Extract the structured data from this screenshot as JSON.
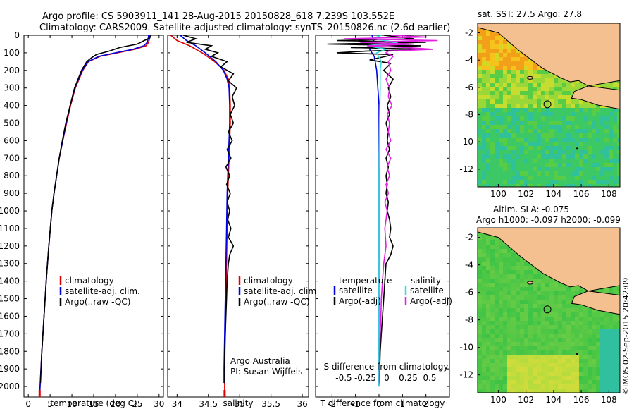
{
  "header": {
    "line1": "Argo profile: CS 5903911_141 28-Aug-2015 20150828_618 7.239S 103.552E",
    "line2": "Climatology: CARS2009. Satellite-adjusted climatology: synTS_20150826.nc (2.6d earlier)"
  },
  "colors": {
    "climatology": "#e00000",
    "satellite": "#0000e0",
    "argo": "#000000",
    "sat_cyan": "#33dddd",
    "argo_magenta": "#e020e0",
    "land": "#f5c08f",
    "sea_green": "#3cc840",
    "sea_orange": "#f2a019"
  },
  "depth_ticks": [
    "0",
    "100",
    "200",
    "300",
    "400",
    "500",
    "600",
    "700",
    "800",
    "900",
    "1000",
    "1100",
    "1200",
    "1300",
    "1400",
    "1500",
    "1600",
    "1700",
    "1800",
    "1900",
    "2000"
  ],
  "chart_data": [
    {
      "type": "line",
      "name": "temperature",
      "xlabel": "temperature (deg C)",
      "xlim": [
        -1,
        31
      ],
      "xticks": [
        0,
        5,
        10,
        15,
        20,
        25,
        30
      ],
      "ylim": [
        0,
        2060
      ],
      "y_reversed": true,
      "legend": [
        "climatology",
        "satellite-adj. clim.",
        "Argo(..raw -QC)"
      ],
      "series": [
        {
          "name": "climatology",
          "color": "#e00000",
          "depth": [
            0,
            20,
            40,
            60,
            80,
            100,
            120,
            150,
            200,
            300,
            400,
            500,
            600,
            700,
            800,
            900,
            1000,
            1200,
            1400,
            1600,
            1800,
            2000,
            2060
          ],
          "values": [
            27.9,
            27.8,
            27.6,
            27.0,
            24.5,
            20.5,
            16.5,
            13.8,
            12.5,
            10.8,
            9.7,
            8.8,
            7.9,
            7.1,
            6.5,
            5.9,
            5.4,
            4.7,
            4.1,
            3.6,
            3.1,
            2.7,
            2.6
          ]
        },
        {
          "name": "satellite-adj. clim.",
          "color": "#0000e0",
          "depth": [
            0,
            20,
            40,
            60,
            80,
            100,
            120,
            150,
            200,
            300,
            400,
            500,
            600,
            700,
            800,
            900,
            1000,
            1200,
            1400,
            1600,
            1800,
            2000,
            2060
          ],
          "values": [
            27.6,
            27.5,
            27.3,
            26.5,
            24.0,
            20.0,
            16.2,
            13.7,
            12.4,
            10.7,
            9.6,
            8.7,
            7.9,
            7.1,
            6.5,
            5.9,
            5.4,
            4.7,
            4.1,
            3.6,
            3.1,
            2.7,
            2.6
          ]
        },
        {
          "name": "Argo(..raw -QC)",
          "color": "#000000",
          "depth": [
            0,
            15,
            30,
            50,
            70,
            90,
            110,
            130,
            150,
            200,
            300,
            400,
            500,
            600,
            700,
            800,
            900,
            1000,
            1200,
            1400,
            1600,
            1800,
            1980
          ],
          "values": [
            28.0,
            27.9,
            26.6,
            25.0,
            21.0,
            18.6,
            15.6,
            14.4,
            13.4,
            12.2,
            10.6,
            9.6,
            8.6,
            7.8,
            7.1,
            6.5,
            5.9,
            5.4,
            4.7,
            4.1,
            3.6,
            3.1,
            2.8
          ]
        }
      ]
    },
    {
      "type": "line",
      "name": "salinity",
      "xlabel": "salinity",
      "xlim": [
        33.85,
        36.1
      ],
      "xticks": [
        "34",
        "34.5",
        "35",
        "35.5",
        "36"
      ],
      "ylim": [
        0,
        2060
      ],
      "y_reversed": true,
      "legend": [
        "climatology",
        "satellite-adj. clim.",
        "Argo(..raw -QC)"
      ],
      "annotation": [
        "Argo Australia",
        "PI: Susan Wijffels"
      ],
      "series": [
        {
          "name": "climatology",
          "color": "#e00000",
          "depth": [
            0,
            30,
            60,
            100,
            150,
            200,
            250,
            300,
            400,
            500,
            700,
            900,
            1100,
            1300,
            1500,
            1700,
            1900,
            2060
          ],
          "values": [
            33.9,
            34.0,
            34.2,
            34.4,
            34.6,
            34.75,
            34.82,
            34.84,
            34.85,
            34.85,
            34.83,
            34.81,
            34.8,
            34.79,
            34.78,
            34.77,
            34.76,
            34.76
          ]
        },
        {
          "name": "satellite-adj. clim.",
          "color": "#0000e0",
          "depth": [
            0,
            30,
            60,
            100,
            150,
            200,
            250,
            300,
            400,
            500,
            700,
            900,
            1100,
            1300,
            1500,
            1700,
            1900,
            1980
          ],
          "values": [
            34.05,
            34.15,
            34.3,
            34.45,
            34.62,
            34.74,
            34.8,
            34.83,
            34.84,
            34.84,
            34.82,
            34.8,
            34.79,
            34.78,
            34.77,
            34.76,
            34.75,
            34.75
          ]
        },
        {
          "name": "Argo(..raw -QC)",
          "color": "#000000",
          "depth": [
            0,
            20,
            40,
            60,
            80,
            100,
            120,
            150,
            180,
            220,
            260,
            300,
            350,
            400,
            450,
            500,
            550,
            600,
            650,
            700,
            750,
            800,
            850,
            900,
            950,
            1000,
            1050,
            1100,
            1150,
            1200,
            1250,
            1300,
            1400,
            1500,
            1600,
            1700,
            1800,
            1900,
            1980
          ],
          "values": [
            34.1,
            34.3,
            34.15,
            34.55,
            34.45,
            34.65,
            34.55,
            34.8,
            34.7,
            34.9,
            34.82,
            34.95,
            34.88,
            34.92,
            34.85,
            34.9,
            34.82,
            34.88,
            34.8,
            34.86,
            34.78,
            34.84,
            34.79,
            34.85,
            34.8,
            34.84,
            34.81,
            34.86,
            34.82,
            34.9,
            34.84,
            34.82,
            34.8,
            34.79,
            34.78,
            34.77,
            34.76,
            34.76,
            34.76
          ]
        }
      ]
    },
    {
      "type": "line",
      "name": "difference",
      "xlabel": "T difference from climatology",
      "xlim": [
        -2.7,
        3.0
      ],
      "xticks": [
        "-2",
        "-1",
        "0",
        "1",
        "2"
      ],
      "top_axis_label": "S difference from climatology",
      "top_ticks": [
        "-0.5",
        "-0.25",
        "0",
        "0.25",
        "0.5"
      ],
      "ylim": [
        0,
        2060
      ],
      "y_reversed": true,
      "legend_temperature_title": "temperature",
      "legend_salinity_title": "salinity",
      "legend_temperature": [
        "satellite",
        "Argo(-adj)"
      ],
      "legend_salinity": [
        "satellite",
        "Argo(-adj)"
      ],
      "series": [
        {
          "name": "T satellite",
          "color": "#0000e0",
          "depth": [
            0,
            40,
            80,
            120,
            200,
            400,
            800,
            1200,
            1600,
            2000
          ],
          "values": [
            -0.3,
            -0.2,
            -0.4,
            -0.2,
            -0.1,
            0,
            0,
            0,
            0,
            0
          ]
        },
        {
          "name": "T Argo(-adj)",
          "color": "#000000",
          "depth": [
            0,
            20,
            30,
            40,
            50,
            60,
            70,
            80,
            90,
            100,
            110,
            120,
            140,
            160,
            200,
            250,
            300,
            350,
            400,
            450,
            500,
            550,
            600,
            650,
            700,
            750,
            800,
            850,
            900,
            950,
            1000,
            1050,
            1100,
            1150,
            1200,
            1250,
            1300,
            1400,
            1500,
            1600,
            1700,
            1800,
            1900,
            1980
          ],
          "values": [
            0.2,
            1.5,
            -1.8,
            2.0,
            -2.2,
            1.8,
            -1.2,
            2.1,
            -0.5,
            -1.8,
            0.6,
            0.3,
            -0.4,
            0.5,
            0.2,
            0.6,
            0.4,
            0.5,
            0.35,
            0.45,
            0.3,
            0.4,
            0.35,
            0.45,
            0.3,
            0.4,
            0.3,
            0.35,
            0.3,
            0.4,
            0.35,
            0.45,
            0.5,
            0.45,
            0.6,
            0.5,
            0.3,
            0.25,
            0.2,
            0.15,
            0.1,
            0.05,
            0.03,
            0.02
          ]
        },
        {
          "name": "S satellite",
          "color": "#33dddd",
          "depth": [
            0,
            20,
            40,
            60,
            80,
            100,
            150,
            200,
            300,
            500,
            800,
            1200,
            1600,
            2000
          ],
          "values": [
            0.1,
            -0.3,
            0.8,
            -0.5,
            0.3,
            -0.1,
            0.1,
            0.05,
            0.05,
            0.02,
            0.0,
            0.0,
            0.0,
            0.0
          ]
        },
        {
          "name": "S Argo(-adj)",
          "color": "#e020e0",
          "depth": [
            0,
            10,
            20,
            30,
            40,
            50,
            60,
            70,
            80,
            90,
            100,
            120,
            150,
            200,
            250,
            300,
            350,
            400,
            450,
            500,
            550,
            600,
            650,
            700,
            750,
            800,
            850,
            900,
            950,
            1000,
            1100,
            1200,
            1300,
            1400,
            1500,
            1600,
            1700,
            1800,
            1900,
            1980
          ],
          "values": [
            0.5,
            2.0,
            -1.5,
            2.5,
            -0.8,
            1.5,
            -0.5,
            1.2,
            2.3,
            0.4,
            0.3,
            0.6,
            0.4,
            0.5,
            0.3,
            0.45,
            0.4,
            0.55,
            0.35,
            0.45,
            0.4,
            0.5,
            0.3,
            0.5,
            0.35,
            0.45,
            0.3,
            0.4,
            0.25,
            0.35,
            0.25,
            0.3,
            0.2,
            0.15,
            0.1,
            0.08,
            0.05,
            0.03,
            0.02,
            0.02
          ]
        }
      ]
    },
    {
      "type": "heatmap",
      "name": "sst_map",
      "title": "sat. SST: 27.5 Argo: 27.8",
      "xticks": [
        "100",
        "102",
        "104",
        "106",
        "108"
      ],
      "yticks": [
        "-2",
        "-4",
        "-6",
        "-8",
        "-10",
        "-12"
      ],
      "xlim": [
        98.5,
        108.8
      ],
      "ylim": [
        -13.3,
        -1.3
      ],
      "argo_location": [
        103.552,
        -7.239
      ]
    },
    {
      "type": "heatmap",
      "name": "sla_map",
      "title_line1": "Altim. SLA: -0.075",
      "title_line2": "Argo h1000: -0.097 h2000: -0.099",
      "xticks": [
        "100",
        "102",
        "104",
        "106",
        "108"
      ],
      "yticks": [
        "-2",
        "-4",
        "-6",
        "-8",
        "-10",
        "-12"
      ],
      "xlim": [
        98.5,
        108.8
      ],
      "ylim": [
        -13.3,
        -1.3
      ],
      "argo_location": [
        103.552,
        -7.239
      ]
    }
  ],
  "credit": "©IMOS 02-Sep-2015 20:42:09"
}
